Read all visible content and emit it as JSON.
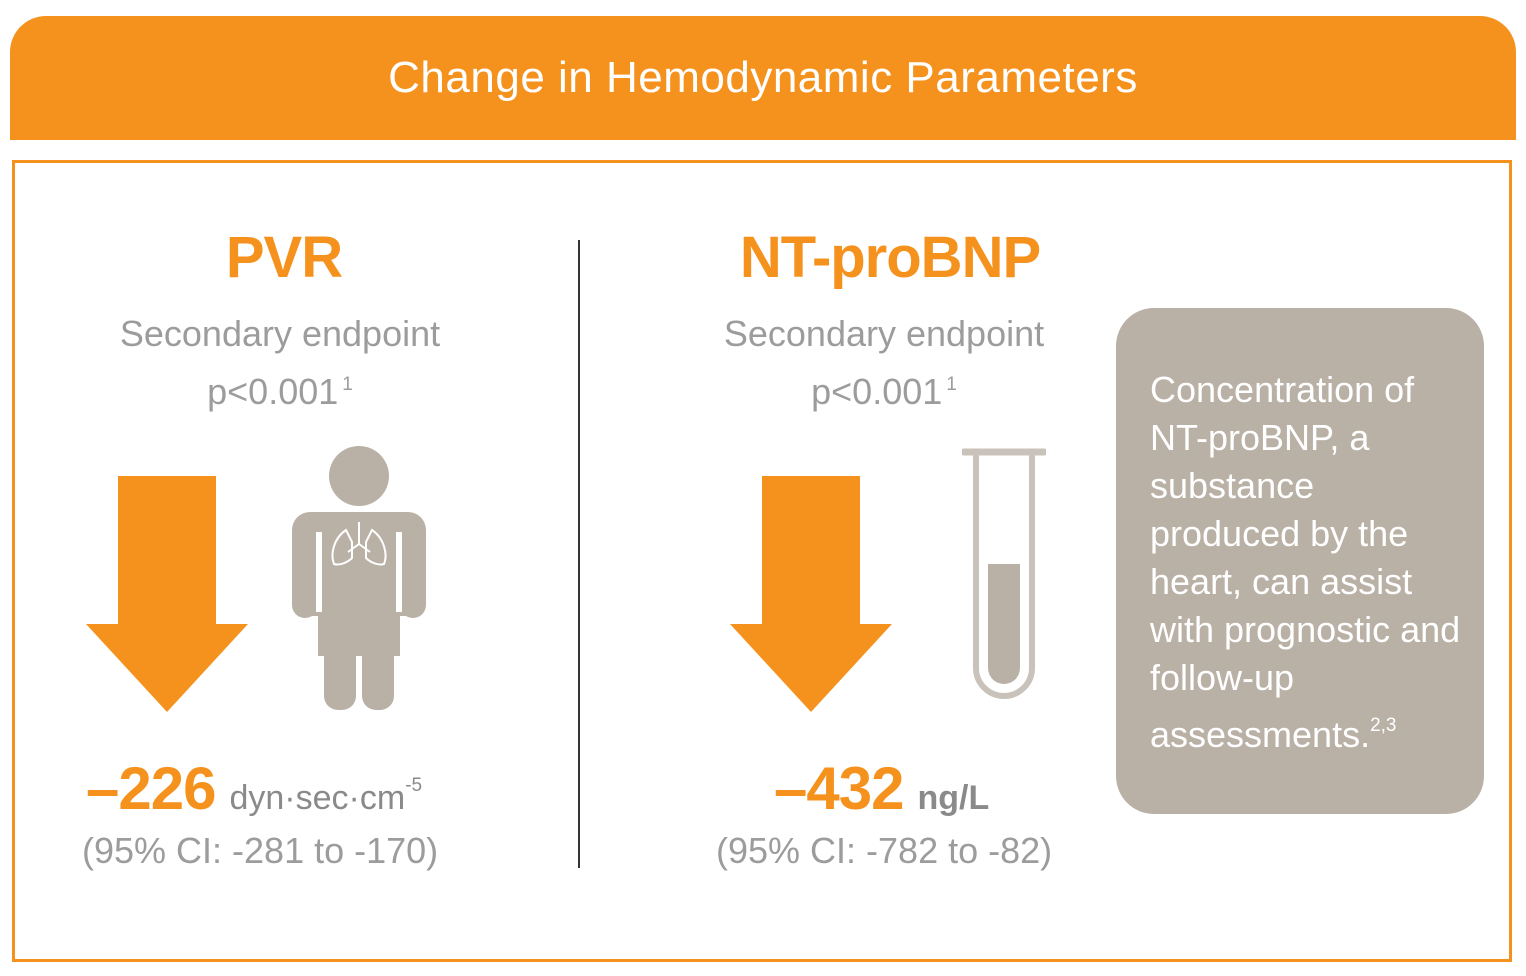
{
  "header": {
    "title": "Change in Hemodynamic Parameters"
  },
  "colors": {
    "accent": "#f5921e",
    "icon_gray": "#b9b0a6",
    "text_gray": "#9c9c9c"
  },
  "pvr": {
    "title": "PVR",
    "endpoint": "Secondary endpoint",
    "pvalue": "p<0.001",
    "pvalue_ref": "1",
    "change": "–226",
    "unit": "dyn·sec·cm",
    "unit_exp": "-5",
    "ci": "(95% CI: -281 to -170)",
    "icons": [
      "down-arrow-icon",
      "person-lungs-icon"
    ]
  },
  "ntprobnp": {
    "title": "NT-proBNP",
    "endpoint": "Secondary endpoint",
    "pvalue": "p<0.001",
    "pvalue_ref": "1",
    "change": "–432",
    "unit": "ng/L",
    "ci": "(95% CI: -782 to -82)",
    "icons": [
      "down-arrow-icon",
      "test-tube-icon"
    ]
  },
  "info": {
    "text": "Concentration of NT-proBNP, a substance produced by the heart, can assist with prognostic and follow-up assessments.",
    "refs": "2,3"
  }
}
